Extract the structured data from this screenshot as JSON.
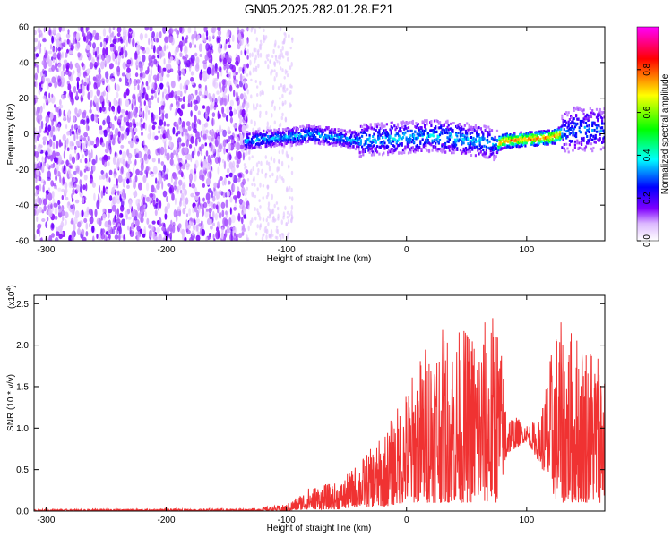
{
  "title": "GN05.2025.282.01.28.E21",
  "chart_data": [
    {
      "type": "heatmap",
      "xlabel": "Height of straight line (km)",
      "ylabel": "Frequency (Hz)",
      "xlim": [
        -310,
        165
      ],
      "ylim": [
        -60,
        60
      ],
      "xticks": [
        -300,
        -200,
        -100,
        0,
        100
      ],
      "yticks": [
        -60,
        -40,
        -20,
        0,
        20,
        40,
        60
      ],
      "colorbar": {
        "label": "Normalized spectral amplitude",
        "range": [
          0.0,
          1.0
        ],
        "ticks": [
          "0.0",
          "0.2",
          "0.4",
          "0.6",
          "0.8"
        ],
        "colors": [
          "#ffffff",
          "#cc88ff",
          "#7a00ff",
          "#0000ff",
          "#00ffff",
          "#00ff00",
          "#ffff00",
          "#ff0000",
          "#ff00ff"
        ]
      },
      "regions": [
        {
          "x": [
            -310,
            -135
          ],
          "description_level": 0.1,
          "freq_spread": [
            -60,
            60
          ]
        },
        {
          "x": [
            -135,
            -100
          ],
          "level": 0.05,
          "freq_spread": [
            -60,
            60
          ]
        },
        {
          "x": [
            -135,
            75
          ],
          "center_freq": 0,
          "level": 0.35
        },
        {
          "x": [
            75,
            125
          ],
          "center_freq": -3,
          "level": 0.8
        },
        {
          "x": [
            125,
            165
          ],
          "center_freq": 5,
          "level": 0.3
        }
      ],
      "ridge": [
        {
          "x": -135,
          "y": -4
        },
        {
          "x": -120,
          "y": -3
        },
        {
          "x": -100,
          "y": -2
        },
        {
          "x": -80,
          "y": 0
        },
        {
          "x": -60,
          "y": -2
        },
        {
          "x": -40,
          "y": -4
        },
        {
          "x": -20,
          "y": -3
        },
        {
          "x": 0,
          "y": -2
        },
        {
          "x": 20,
          "y": -1
        },
        {
          "x": 40,
          "y": -2
        },
        {
          "x": 60,
          "y": -4
        },
        {
          "x": 75,
          "y": -6
        },
        {
          "x": 80,
          "y": -4
        },
        {
          "x": 100,
          "y": -3
        },
        {
          "x": 120,
          "y": -2
        },
        {
          "x": 140,
          "y": 3
        },
        {
          "x": 160,
          "y": 2
        }
      ]
    },
    {
      "type": "line",
      "xlabel": "Height of straight line (km)",
      "ylabel": "SNR (10 * v/v)",
      "yscale_label": "(x10",
      "yscale_exp": "4",
      "xlim": [
        -310,
        165
      ],
      "ylim": [
        0,
        2.6
      ],
      "xticks": [
        -300,
        -200,
        -100,
        0,
        100
      ],
      "yticks": [
        "0.0",
        "0.5",
        "1.0",
        "1.5",
        "2.0",
        "2.5"
      ],
      "color": "#f03232",
      "envelope": [
        {
          "x": -310,
          "lo": 0.0,
          "hi": 0.02
        },
        {
          "x": -130,
          "lo": 0.0,
          "hi": 0.03
        },
        {
          "x": -100,
          "lo": 0.0,
          "hi": 0.08
        },
        {
          "x": -80,
          "lo": 0.02,
          "hi": 0.3
        },
        {
          "x": -55,
          "lo": 0.02,
          "hi": 0.35
        },
        {
          "x": -40,
          "lo": 0.05,
          "hi": 0.6
        },
        {
          "x": -20,
          "lo": 0.05,
          "hi": 0.9
        },
        {
          "x": 0,
          "lo": 0.1,
          "hi": 1.5
        },
        {
          "x": 20,
          "lo": 0.1,
          "hi": 2.2
        },
        {
          "x": 40,
          "lo": 0.1,
          "hi": 2.2
        },
        {
          "x": 60,
          "lo": 0.1,
          "hi": 2.25
        },
        {
          "x": 75,
          "lo": 0.1,
          "hi": 2.45
        },
        {
          "x": 85,
          "lo": 0.7,
          "hi": 1.2
        },
        {
          "x": 100,
          "lo": 0.85,
          "hi": 1.05
        },
        {
          "x": 110,
          "lo": 0.6,
          "hi": 1.1
        },
        {
          "x": 125,
          "lo": 0.1,
          "hi": 2.3
        },
        {
          "x": 140,
          "lo": 0.1,
          "hi": 2.2
        },
        {
          "x": 165,
          "lo": 0.1,
          "hi": 2.0
        }
      ]
    }
  ]
}
